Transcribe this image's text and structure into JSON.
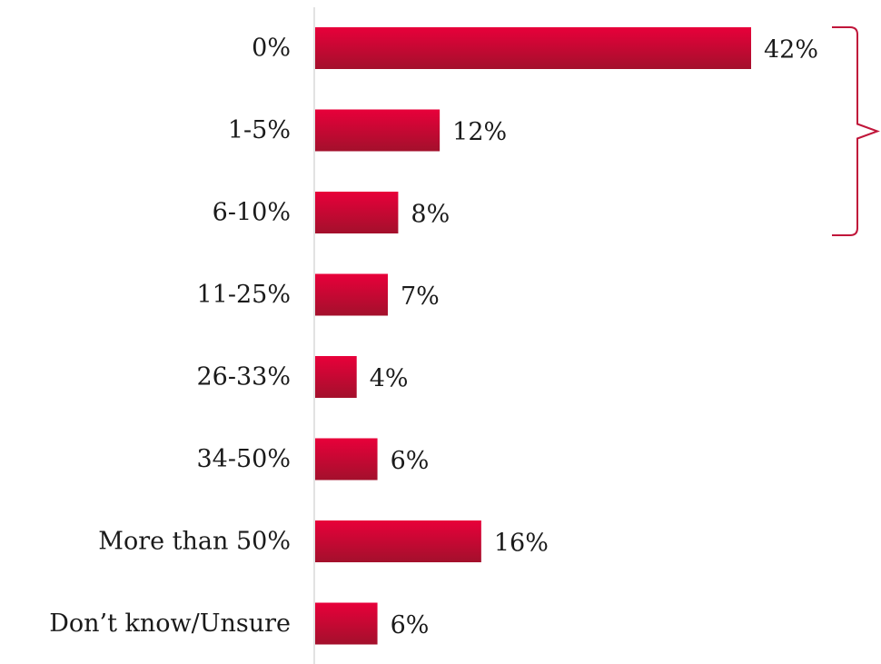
{
  "chart_data": {
    "type": "bar",
    "orientation": "horizontal",
    "categories": [
      "0%",
      "1-5%",
      "6-10%",
      "11-25%",
      "26-33%",
      "34-50%",
      "More than 50%",
      "Don’t know/Unsure"
    ],
    "values": [
      42,
      12,
      8,
      7,
      4,
      6,
      16,
      6
    ],
    "value_labels": [
      "42%",
      "12%",
      "8%",
      "7%",
      "4%",
      "6%",
      "16%",
      "6%"
    ],
    "value_unit": "%",
    "xlim": [
      0,
      42
    ],
    "title": "",
    "xlabel": "",
    "ylabel": "",
    "grid": false,
    "legend": "none",
    "bracket_categories": [
      "0%",
      "1-5%",
      "6-10%"
    ],
    "colors": {
      "bar_top": "#e8003a",
      "bar_bottom": "#a3102c",
      "bracket": "#c0163a",
      "axis": "#d9d9d9",
      "text": "#1a1a1a"
    }
  }
}
